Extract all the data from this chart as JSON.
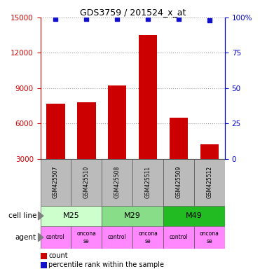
{
  "title": "GDS3759 / 201524_x_at",
  "samples": [
    "GSM425507",
    "GSM425510",
    "GSM425508",
    "GSM425511",
    "GSM425509",
    "GSM425512"
  ],
  "counts": [
    7700,
    7800,
    9200,
    13500,
    6500,
    4200
  ],
  "percentiles": [
    99,
    99,
    99,
    99,
    99,
    98
  ],
  "ylim_left": [
    3000,
    15000
  ],
  "ylim_right": [
    0,
    100
  ],
  "yticks_left": [
    3000,
    6000,
    9000,
    12000,
    15000
  ],
  "yticks_right": [
    0,
    25,
    50,
    75,
    100
  ],
  "bar_color": "#cc0000",
  "dot_color": "#1111cc",
  "cell_line_groups": [
    [
      "M25",
      0,
      1
    ],
    [
      "M29",
      2,
      3
    ],
    [
      "M49",
      4,
      5
    ]
  ],
  "cell_line_colors": {
    "M25": "#ccffcc",
    "M29": "#88dd88",
    "M49": "#22bb22"
  },
  "agent_color": "#ff88ff",
  "agent_labels": [
    "control",
    "oncona\nse",
    "control",
    "oncona\nse",
    "control",
    "oncona\nse"
  ],
  "cell_line_label": "cell line",
  "agent_label": "agent",
  "legend_count_label": "count",
  "legend_percentile_label": "percentile rank within the sample",
  "background_color": "#ffffff",
  "tick_color_left": "#cc0000",
  "tick_color_right": "#0000cc",
  "gray_box_color": "#bbbbbb",
  "box_edge_color": "#555555"
}
